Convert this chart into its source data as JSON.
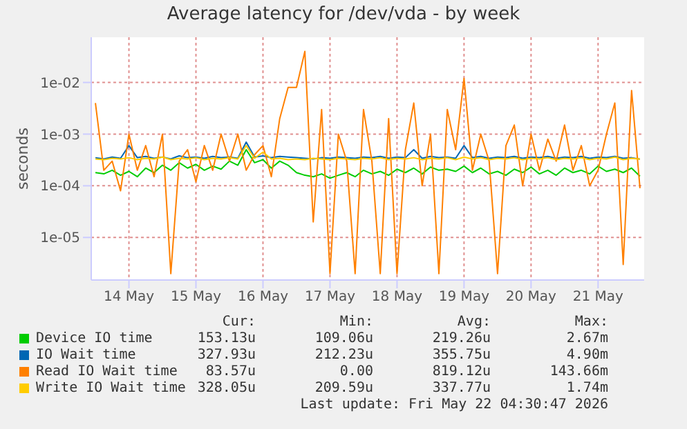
{
  "chart_data": {
    "type": "line",
    "title": "Average latency for /dev/vda - by week",
    "ylabel": "seconds",
    "log": "y",
    "grid": true,
    "legend": "bottom",
    "xlim": [
      "2026-05-13T22:30",
      "2026-05-22T04:30"
    ],
    "xticks": [
      {
        "value": "2026-05-14T12:00",
        "label": "14 May"
      },
      {
        "value": "2026-05-15T12:00",
        "label": "15 May"
      },
      {
        "value": "2026-05-16T12:00",
        "label": "16 May"
      },
      {
        "value": "2026-05-17T12:00",
        "label": "17 May"
      },
      {
        "value": "2026-05-18T12:00",
        "label": "18 May"
      },
      {
        "value": "2026-05-19T12:00",
        "label": "19 May"
      },
      {
        "value": "2026-05-20T12:00",
        "label": "20 May"
      },
      {
        "value": "2026-05-21T12:00",
        "label": "21 May"
      }
    ],
    "ylim": [
      1.5e-06,
      0.075
    ],
    "yticks": [
      {
        "value": 1e-05,
        "label": "1e-05"
      },
      {
        "value": 0.0001,
        "label": "1e-04"
      },
      {
        "value": 0.001,
        "label": "1e-03"
      },
      {
        "value": 0.01,
        "label": "1e-02"
      }
    ],
    "x": [
      "2026-05-14T00:00",
      "2026-05-14T03:00",
      "2026-05-14T06:00",
      "2026-05-14T09:00",
      "2026-05-14T12:00",
      "2026-05-14T15:00",
      "2026-05-14T18:00",
      "2026-05-14T21:00",
      "2026-05-15T00:00",
      "2026-05-15T03:00",
      "2026-05-15T06:00",
      "2026-05-15T09:00",
      "2026-05-15T12:00",
      "2026-05-15T15:00",
      "2026-05-15T18:00",
      "2026-05-15T21:00",
      "2026-05-16T00:00",
      "2026-05-16T03:00",
      "2026-05-16T06:00",
      "2026-05-16T09:00",
      "2026-05-16T12:00",
      "2026-05-16T15:00",
      "2026-05-16T18:00",
      "2026-05-16T21:00",
      "2026-05-17T00:00",
      "2026-05-17T03:00",
      "2026-05-17T06:00",
      "2026-05-17T09:00",
      "2026-05-17T12:00",
      "2026-05-17T15:00",
      "2026-05-17T18:00",
      "2026-05-17T21:00",
      "2026-05-18T00:00",
      "2026-05-18T03:00",
      "2026-05-18T06:00",
      "2026-05-18T09:00",
      "2026-05-18T12:00",
      "2026-05-18T15:00",
      "2026-05-18T18:00",
      "2026-05-18T21:00",
      "2026-05-19T00:00",
      "2026-05-19T03:00",
      "2026-05-19T06:00",
      "2026-05-19T09:00",
      "2026-05-19T12:00",
      "2026-05-19T15:00",
      "2026-05-19T18:00",
      "2026-05-19T21:00",
      "2026-05-20T00:00",
      "2026-05-20T03:00",
      "2026-05-20T06:00",
      "2026-05-20T09:00",
      "2026-05-20T12:00",
      "2026-05-20T15:00",
      "2026-05-20T18:00",
      "2026-05-20T21:00",
      "2026-05-21T00:00",
      "2026-05-21T03:00",
      "2026-05-21T06:00",
      "2026-05-21T09:00",
      "2026-05-21T12:00",
      "2026-05-21T15:00",
      "2026-05-21T18:00",
      "2026-05-21T21:00",
      "2026-05-22T00:00",
      "2026-05-22T03:00"
    ],
    "series": [
      {
        "name": "Device IO time",
        "color": "#00cc00",
        "values": [
          0.00018,
          0.00017,
          0.0002,
          0.00016,
          0.00019,
          0.00015,
          0.00022,
          0.00018,
          0.00025,
          0.0002,
          0.00028,
          0.00022,
          0.00026,
          0.0002,
          0.00024,
          0.00021,
          0.0003,
          0.00025,
          0.0005,
          0.00028,
          0.00032,
          0.00022,
          0.0003,
          0.00025,
          0.00018,
          0.00016,
          0.00015,
          0.00017,
          0.00014,
          0.00016,
          0.00018,
          0.00015,
          0.0002,
          0.00017,
          0.00019,
          0.00016,
          0.00021,
          0.00018,
          0.00022,
          0.00017,
          0.00023,
          0.0002,
          0.00021,
          0.00019,
          0.00024,
          0.00018,
          0.00022,
          0.00017,
          0.00019,
          0.00016,
          0.00021,
          0.00018,
          0.00023,
          0.00017,
          0.0002,
          0.00016,
          0.00022,
          0.00018,
          0.0002,
          0.00017,
          0.00024,
          0.00019,
          0.00021,
          0.00018,
          0.00022,
          0.000153
        ]
      },
      {
        "name": "IO Wait time",
        "color": "#0066b3",
        "values": [
          0.00035,
          0.00033,
          0.00036,
          0.00034,
          0.0006,
          0.00035,
          0.00037,
          0.00034,
          0.00036,
          0.00033,
          0.00038,
          0.00035,
          0.00036,
          0.00034,
          0.00037,
          0.00035,
          0.00036,
          0.00034,
          0.0007,
          0.00036,
          0.00038,
          0.00035,
          0.00037,
          0.00036,
          0.00035,
          0.00034,
          0.00033,
          0.00035,
          0.00034,
          0.00036,
          0.00035,
          0.00034,
          0.00036,
          0.00035,
          0.00037,
          0.00034,
          0.00036,
          0.00035,
          0.0005,
          0.00034,
          0.00037,
          0.00035,
          0.00036,
          0.00034,
          0.0006,
          0.00035,
          0.00037,
          0.00034,
          0.00036,
          0.00035,
          0.00037,
          0.00034,
          0.00036,
          0.00035,
          0.00037,
          0.00034,
          0.00036,
          0.00035,
          0.00037,
          0.00034,
          0.00036,
          0.00035,
          0.00037,
          0.00034,
          0.00035,
          0.000328
        ]
      },
      {
        "name": "Read IO Wait time",
        "color": "#ff8000",
        "values": [
          0.004,
          0.0002,
          0.0003,
          8e-05,
          0.001,
          0.0002,
          0.0006,
          0.00015,
          0.001,
          2e-06,
          0.0003,
          0.0005,
          0.00012,
          0.0006,
          0.0002,
          0.001,
          0.0003,
          0.001,
          0.0002,
          0.0004,
          0.0006,
          0.00015,
          0.002,
          0.008,
          0.008,
          0.04,
          2e-05,
          0.003,
          2e-06,
          0.001,
          0.0003,
          2e-06,
          0.003,
          0.0003,
          2e-06,
          0.002,
          2e-06,
          0.0005,
          0.004,
          0.0001,
          0.001,
          2e-06,
          0.003,
          0.0005,
          0.012,
          0.0002,
          0.001,
          0.0003,
          2e-06,
          0.0006,
          0.0015,
          0.0001,
          0.001,
          0.0002,
          0.0008,
          0.0003,
          0.0015,
          0.0002,
          0.0006,
          0.0001,
          0.0002,
          0.001,
          0.004,
          3e-06,
          0.007,
          9e-05
        ]
      },
      {
        "name": "Write IO Wait time",
        "color": "#ffcc00",
        "values": [
          0.00033,
          0.00032,
          0.00034,
          0.00033,
          0.00035,
          0.00032,
          0.00034,
          0.00033,
          0.00036,
          0.00032,
          0.00034,
          0.00033,
          0.00035,
          0.00032,
          0.00034,
          0.00033,
          0.00035,
          0.00033,
          0.0006,
          0.00034,
          0.00045,
          0.00033,
          0.00034,
          0.00032,
          0.00033,
          0.00032,
          0.00034,
          0.00033,
          0.00032,
          0.00034,
          0.00033,
          0.00032,
          0.00034,
          0.00033,
          0.00035,
          0.00032,
          0.00034,
          0.00033,
          0.00035,
          0.00032,
          0.00034,
          0.00033,
          0.00035,
          0.00032,
          0.00036,
          0.00033,
          0.00035,
          0.00032,
          0.00034,
          0.00033,
          0.00035,
          0.00032,
          0.00034,
          0.00033,
          0.00035,
          0.00032,
          0.00034,
          0.00033,
          0.00035,
          0.00032,
          0.00034,
          0.00033,
          0.00036,
          0.00032,
          0.00034,
          0.000328
        ]
      }
    ],
    "annotations": [
      "Cur:",
      "Min:",
      "Avg:",
      "Max:",
      "153.13u",
      "109.06u",
      "219.26u",
      "2.67m",
      "327.93u",
      "212.23u",
      "355.75u",
      "4.90m",
      "83.57u",
      "0.00",
      "819.12u",
      "143.66m",
      "328.05u",
      "209.59u",
      "337.77u",
      "1.74m",
      "Last update: Fri May 22 04:30:47 2026"
    ]
  }
}
